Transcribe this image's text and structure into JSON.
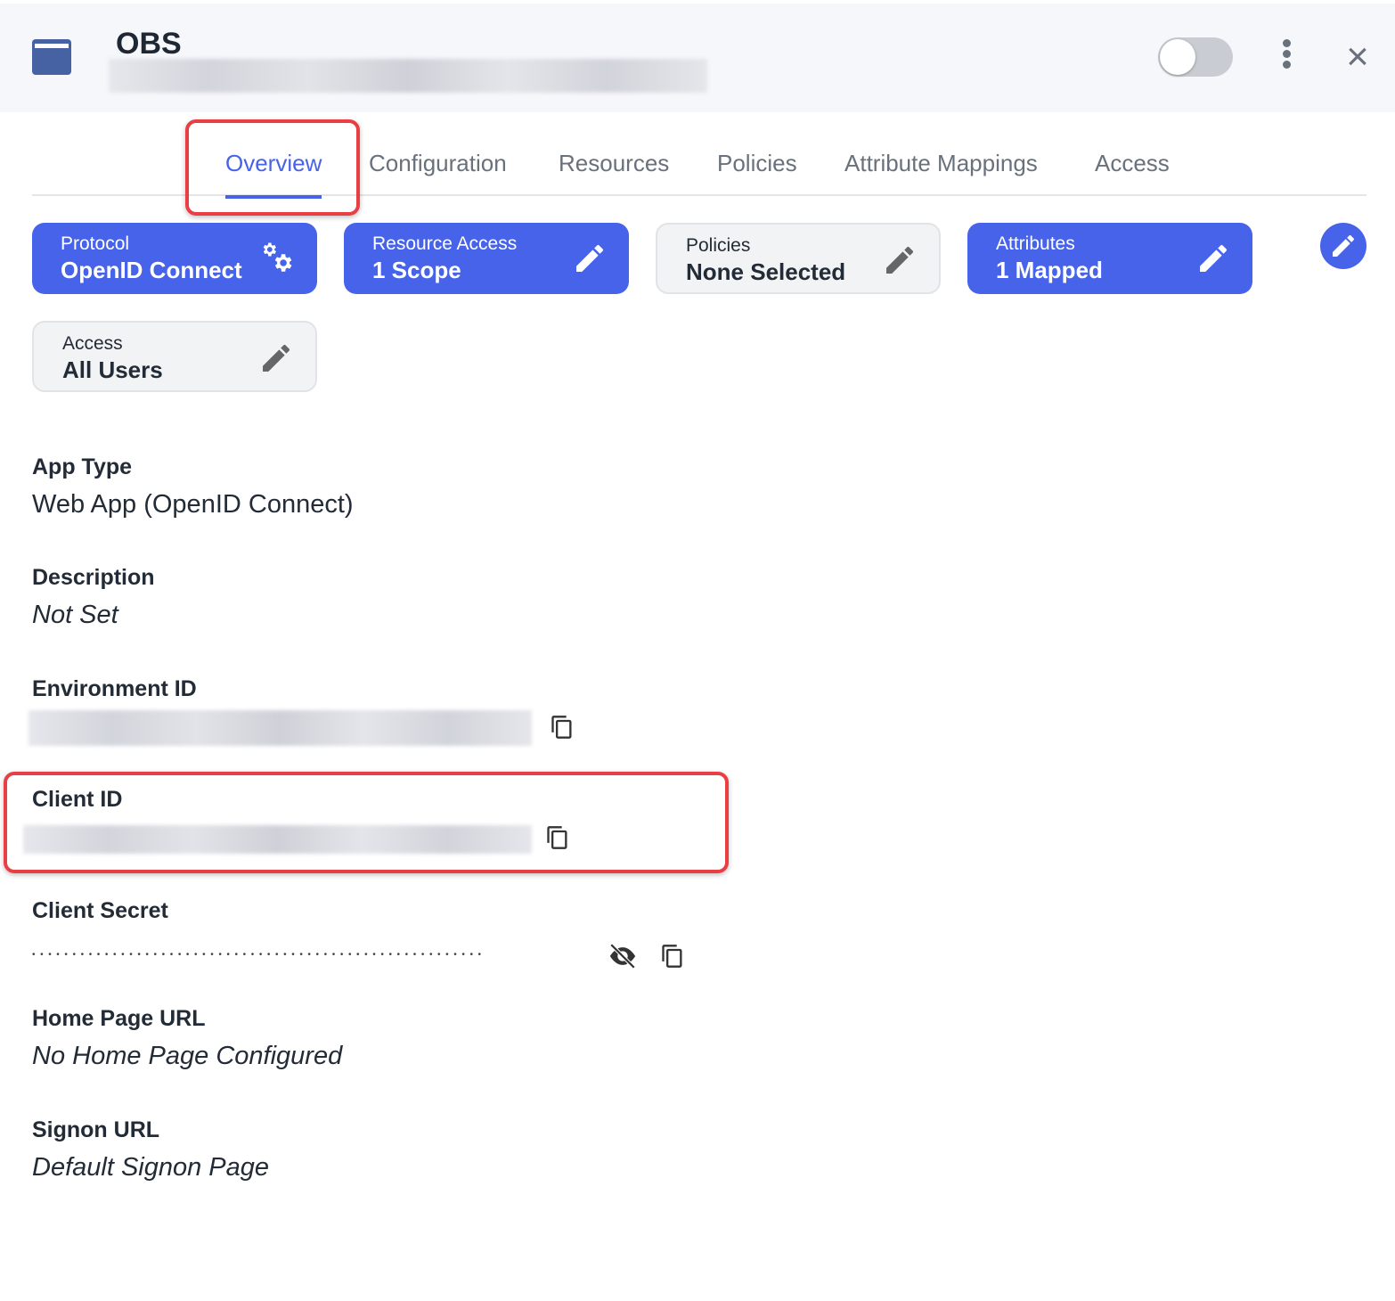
{
  "header": {
    "title": "OBS",
    "enabled": false
  },
  "tabs": [
    {
      "label": "Overview",
      "active": true
    },
    {
      "label": "Configuration"
    },
    {
      "label": "Resources"
    },
    {
      "label": "Policies"
    },
    {
      "label": "Attribute Mappings"
    },
    {
      "label": "Access"
    }
  ],
  "cards": [
    {
      "label": "Protocol",
      "value": "OpenID Connect",
      "icon": "gears-icon",
      "style": "blue"
    },
    {
      "label": "Resource Access",
      "value": "1 Scope",
      "icon": "pencil-icon",
      "style": "blue"
    },
    {
      "label": "Policies",
      "value": "None Selected",
      "icon": "pencil-icon",
      "style": "grey"
    },
    {
      "label": "Attributes",
      "value": "1 Mapped",
      "icon": "pencil-icon",
      "style": "blue"
    },
    {
      "label": "Access",
      "value": "All Users",
      "icon": "pencil-icon",
      "style": "grey"
    }
  ],
  "fields": {
    "app_type": {
      "label": "App Type",
      "value": "Web App (OpenID Connect)"
    },
    "description": {
      "label": "Description",
      "value": "Not Set"
    },
    "environment_id": {
      "label": "Environment ID"
    },
    "client_id": {
      "label": "Client ID"
    },
    "client_secret": {
      "label": "Client Secret",
      "value": "••••••••••••••••••••••••••••••••••••••••••••••••••••••••"
    },
    "home_page_url": {
      "label": "Home Page URL",
      "value": "No Home Page Configured"
    },
    "signon_url": {
      "label": "Signon URL",
      "value": "Default Signon Page"
    }
  },
  "colors": {
    "accent": "#4763ea",
    "highlight": "#ea3e45"
  }
}
